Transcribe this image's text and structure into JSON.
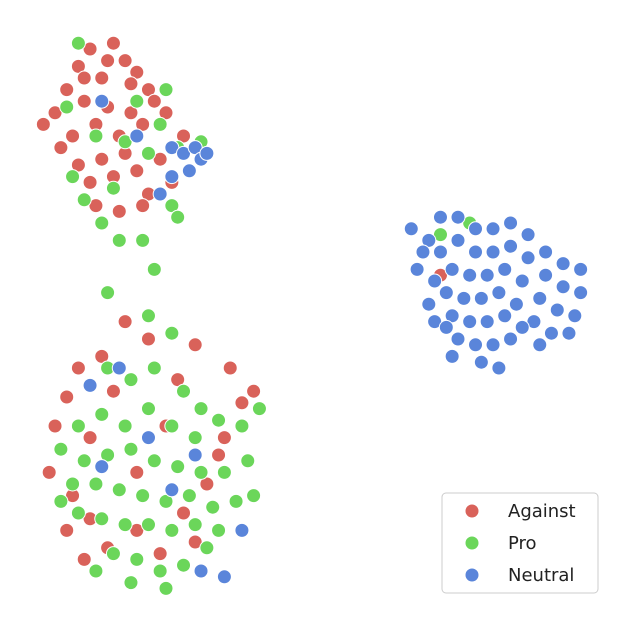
{
  "chart_data": {
    "type": "scatter",
    "xlim": [
      0,
      100
    ],
    "ylim": [
      0,
      100
    ],
    "legend": "lower right",
    "series": [
      {
        "name": "Against",
        "color": "#d9625a",
        "x": [
          8,
          10,
          12,
          14,
          16,
          18,
          20,
          22,
          6,
          9,
          11,
          13,
          15,
          17,
          19,
          21,
          23,
          25,
          7,
          10,
          12,
          14,
          16,
          18,
          20,
          22,
          24,
          26,
          13,
          17,
          21,
          4,
          28,
          19,
          15,
          11,
          18,
          14,
          10,
          8,
          6,
          5,
          9,
          12,
          15,
          20,
          24,
          28,
          32,
          35,
          38,
          40,
          36,
          30,
          22,
          16,
          12,
          25,
          20,
          30,
          34,
          27,
          11,
          8,
          72
        ],
        "values": [
          88,
          92,
          95,
          90,
          96,
          93,
          91,
          88,
          84,
          80,
          86,
          82,
          85,
          80,
          84,
          82,
          86,
          84,
          78,
          75,
          72,
          76,
          73,
          77,
          74,
          70,
          76,
          72,
          68,
          67,
          68,
          82,
          80,
          89,
          93,
          90,
          48,
          42,
          40,
          35,
          30,
          22,
          18,
          14,
          9,
          12,
          8,
          15,
          20,
          28,
          34,
          36,
          40,
          44,
          45,
          36,
          28,
          30,
          22,
          10,
          25,
          38,
          7,
          12,
          56
        ]
      },
      {
        "name": "Pro",
        "color": "#6bd65a",
        "x": [
          10,
          13,
          18,
          22,
          9,
          16,
          20,
          24,
          27,
          11,
          26,
          14,
          17,
          27,
          31,
          8,
          20,
          25,
          15,
          23,
          21,
          22,
          26,
          15,
          19,
          23,
          28,
          31,
          10,
          14,
          18,
          22,
          26,
          30,
          34,
          38,
          41,
          7,
          11,
          15,
          19,
          23,
          27,
          31,
          35,
          39,
          9,
          13,
          17,
          21,
          25,
          29,
          33,
          37,
          40,
          10,
          14,
          18,
          22,
          26,
          30,
          34,
          16,
          20,
          24,
          28,
          32,
          13,
          19,
          25,
          7,
          72,
          77
        ],
        "values": [
          96,
          80,
          79,
          77,
          73,
          71,
          80,
          82,
          78,
          69,
          68,
          65,
          62,
          66,
          79,
          85,
          86,
          88,
          53,
          57,
          62,
          49,
          46,
          40,
          38,
          40,
          36,
          33,
          30,
          32,
          30,
          33,
          30,
          28,
          31,
          30,
          33,
          26,
          24,
          25,
          26,
          24,
          23,
          22,
          22,
          24,
          20,
          20,
          19,
          18,
          17,
          18,
          16,
          17,
          18,
          15,
          14,
          13,
          13,
          12,
          13,
          12,
          8,
          7,
          5,
          6,
          9,
          5,
          3,
          2,
          17,
          63,
          65
        ]
      },
      {
        "name": "Neutral",
        "color": "#5a85da",
        "x": [
          26,
          28,
          30,
          31,
          32,
          29,
          26,
          24,
          14,
          20,
          17,
          12,
          22,
          30,
          14,
          26,
          31,
          35,
          38,
          67,
          70,
          72,
          75,
          78,
          81,
          84,
          87,
          90,
          93,
          96,
          72,
          75,
          78,
          81,
          84,
          87,
          90,
          93,
          96,
          71,
          74,
          77,
          80,
          83,
          86,
          89,
          92,
          95,
          70,
          73,
          76,
          79,
          82,
          85,
          88,
          91,
          94,
          71,
          74,
          77,
          80,
          83,
          86,
          89,
          75,
          78,
          81,
          84,
          79,
          82,
          74,
          68,
          69,
          73
        ],
        "values": [
          78,
          77,
          78,
          76,
          77,
          74,
          73,
          70,
          86,
          80,
          40,
          37,
          28,
          25,
          23,
          19,
          5,
          4,
          12,
          64,
          62,
          66,
          66,
          64,
          64,
          65,
          63,
          60,
          58,
          57,
          60,
          62,
          60,
          60,
          61,
          59,
          56,
          54,
          53,
          55,
          57,
          56,
          56,
          57,
          55,
          52,
          50,
          49,
          51,
          53,
          52,
          52,
          53,
          51,
          48,
          46,
          46,
          48,
          49,
          48,
          48,
          49,
          47,
          44,
          45,
          44,
          44,
          45,
          41,
          40,
          42,
          57,
          60,
          47
        ]
      }
    ]
  }
}
